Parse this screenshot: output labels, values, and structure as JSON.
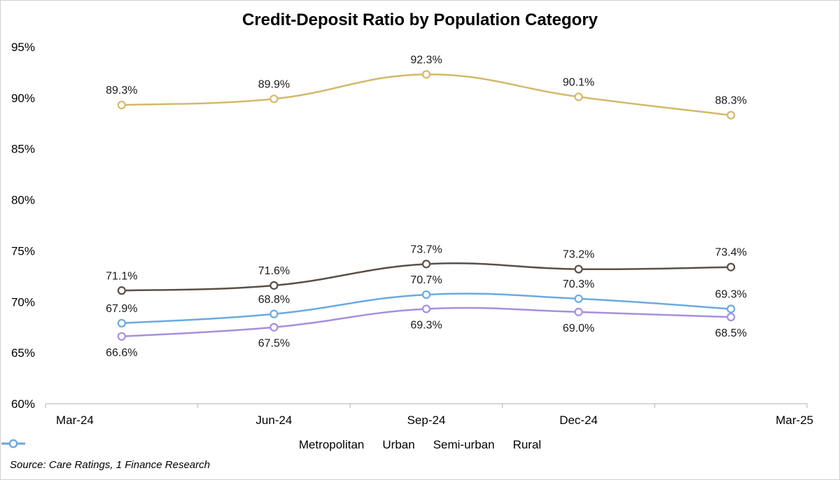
{
  "chart_data": {
    "type": "line",
    "title": "Credit-Deposit Ratio by Population Category",
    "categories": [
      "Mar-24",
      "Jun-24",
      "Sep-24",
      "Dec-24",
      "Mar-25"
    ],
    "ylim": [
      60,
      95
    ],
    "yticks": [
      "60%",
      "65%",
      "70%",
      "75%",
      "80%",
      "85%",
      "90%",
      "95%"
    ],
    "series": [
      {
        "name": "Metropolitan",
        "color": "#d4b86a",
        "values": [
          89.3,
          89.9,
          92.3,
          90.1,
          88.3
        ],
        "labels": [
          "89.3%",
          "89.9%",
          "92.3%",
          "90.1%",
          "88.3%"
        ],
        "label_position": "above"
      },
      {
        "name": "Urban",
        "color": "#a68ee0",
        "values": [
          66.6,
          67.5,
          69.3,
          69.0,
          68.5
        ],
        "labels": [
          "66.6%",
          "67.5%",
          "69.3%",
          "69.0%",
          "68.5%"
        ],
        "label_position": "below"
      },
      {
        "name": "Semi-urban",
        "color": "#5b4f45",
        "values": [
          71.1,
          71.6,
          73.7,
          73.2,
          73.4
        ],
        "labels": [
          "71.1%",
          "71.6%",
          "73.7%",
          "73.2%",
          "73.4%"
        ],
        "label_position": "above"
      },
      {
        "name": "Rural",
        "color": "#6aaae0",
        "values": [
          67.9,
          68.8,
          70.7,
          70.3,
          69.3
        ],
        "labels": [
          "67.9%",
          "68.8%",
          "70.7%",
          "70.3%",
          "69.3%"
        ],
        "label_position": "above"
      }
    ],
    "grid": false,
    "legend": "bottom"
  },
  "source": "Source: Care Ratings, 1 Finance Research"
}
